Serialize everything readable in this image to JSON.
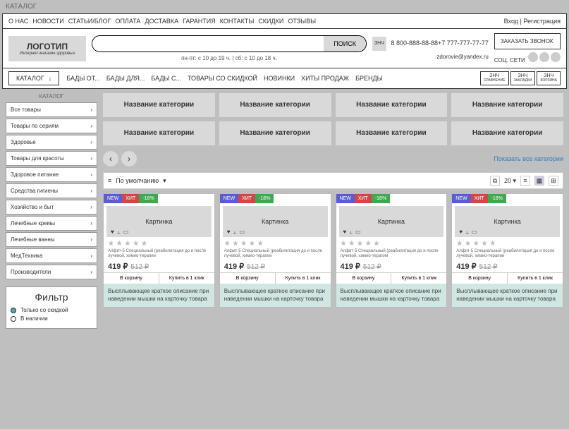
{
  "breadcrumb": "КАТАЛОГ",
  "topnav": {
    "items": [
      "О НАС",
      "НОВОСТИ",
      "СТАТЬИ/БЛОГ",
      "ОПЛАТА",
      "ДОСТАВКА",
      "ГАРАНТИЯ",
      "КОНТАКТЫ",
      "СКИДКИ",
      "ОТЗЫВЫ"
    ],
    "login": "Вход",
    "reg": "Регистрация"
  },
  "logo": {
    "title": "ЛОГОТИП",
    "sub": "Интернет-магазин здоровья"
  },
  "search": {
    "placeholder": "",
    "btn": "ПОИСК"
  },
  "hours": "пн-пт: с 10 до 19 ч.    |    сб: с 10 до 18 ч.",
  "phone": {
    "icon": "ЗНЧ",
    "p1": "8 800-888-88-88",
    "p2": "+7 777-777-77-77"
  },
  "callback": "ЗАКАЗАТЬ ЗВОНОК",
  "email": "zdorovie@yandex.ru",
  "social": "СОЦ. СЕТИ",
  "catdd": "КАТАЛОГ",
  "mainnav": [
    "БАДЫ ОТ...",
    "БАДЫ ДЛЯ...",
    "БАДЫ С...",
    "ТОВАРЫ СО СКИДКОЙ",
    "НОВИНКИ",
    "ХИТЫ ПРОДАЖ",
    "БРЕНДЫ"
  ],
  "navicons": [
    {
      "t": "ЗНЧ",
      "s": "СРАВНЕНИЕ"
    },
    {
      "t": "ЗНЧ",
      "s": "ЗАКЛАДКИ"
    },
    {
      "t": "ЗНЧ",
      "s": "КОРЗИНА"
    }
  ],
  "side": {
    "title": "КАТАЛОГ",
    "items": [
      "Все товары",
      "Товары по сериям",
      "Здоровье",
      "Товары для красоты",
      "Здоровое питание",
      "Средства гигиены",
      "Хозяйство и быт",
      "Лечебные кремы",
      "Лечебные ванны",
      "МедТехника",
      "Производители"
    ]
  },
  "filter": {
    "title": "Фильтр",
    "o1": "Только со скидкой",
    "o2": "В наличии"
  },
  "cats": [
    "Название категории",
    "Название категории",
    "Название категории",
    "Название категории",
    "Название категории",
    "Название категории",
    "Название категории",
    "Название категории"
  ],
  "showall": "Показать все категории",
  "sort": {
    "label": "По умолчанию"
  },
  "perpage": "20",
  "product": {
    "new": "NEW",
    "hit": "ХИТ",
    "disc": "-18%",
    "img": "Картинка",
    "stars": "★ ★ ★ ★ ★",
    "desc": "Алфит-5 Специальный (реабилитация до и после лучевой, химио-терапии",
    "price": "419 ₽",
    "old": "512 ₽",
    "cart": "В корзину",
    "buy": "Купить в 1 клик",
    "pop": "Высплывающее краткое описание при наведении мышки на карточку товара"
  }
}
